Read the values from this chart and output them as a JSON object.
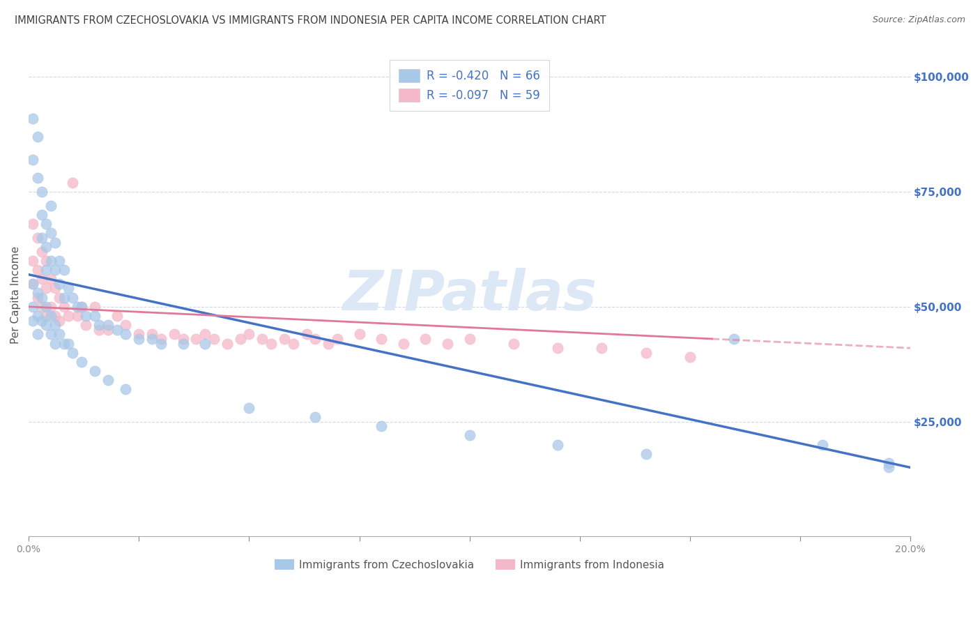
{
  "title": "IMMIGRANTS FROM CZECHOSLOVAKIA VS IMMIGRANTS FROM INDONESIA PER CAPITA INCOME CORRELATION CHART",
  "source": "Source: ZipAtlas.com",
  "ylabel": "Per Capita Income",
  "y_ticks": [
    0,
    25000,
    50000,
    75000,
    100000
  ],
  "x_min": 0.0,
  "x_max": 0.2,
  "y_min": 0,
  "y_max": 105000,
  "legend_r1": "R = -0.420",
  "legend_n1": "N = 66",
  "legend_r2": "R = -0.097",
  "legend_n2": "N = 59",
  "color_blue": "#a8c8e8",
  "color_pink": "#f4b8c8",
  "color_blue_line": "#4472c4",
  "color_pink_line": "#e07898",
  "color_axis_label": "#4472c4",
  "color_title": "#404040",
  "watermark": "ZIPatlas",
  "watermark_color": "#dce8f5",
  "grid_color": "#d0d8e8",
  "scatter_czech_x": [
    0.001,
    0.001,
    0.002,
    0.002,
    0.003,
    0.003,
    0.003,
    0.004,
    0.004,
    0.004,
    0.005,
    0.005,
    0.005,
    0.006,
    0.006,
    0.007,
    0.007,
    0.008,
    0.008,
    0.009,
    0.01,
    0.011,
    0.012,
    0.013,
    0.015,
    0.016,
    0.018,
    0.02,
    0.022,
    0.025,
    0.028,
    0.03,
    0.035,
    0.04,
    0.001,
    0.001,
    0.001,
    0.002,
    0.002,
    0.002,
    0.003,
    0.003,
    0.004,
    0.004,
    0.005,
    0.005,
    0.006,
    0.006,
    0.007,
    0.008,
    0.009,
    0.01,
    0.012,
    0.015,
    0.018,
    0.022,
    0.05,
    0.065,
    0.08,
    0.1,
    0.12,
    0.14,
    0.16,
    0.18,
    0.195,
    0.195
  ],
  "scatter_czech_y": [
    91000,
    82000,
    87000,
    78000,
    75000,
    70000,
    65000,
    68000,
    63000,
    58000,
    72000,
    66000,
    60000,
    64000,
    58000,
    60000,
    55000,
    58000,
    52000,
    54000,
    52000,
    50000,
    50000,
    48000,
    48000,
    46000,
    46000,
    45000,
    44000,
    43000,
    43000,
    42000,
    42000,
    42000,
    55000,
    50000,
    47000,
    53000,
    48000,
    44000,
    52000,
    47000,
    50000,
    46000,
    48000,
    44000,
    46000,
    42000,
    44000,
    42000,
    42000,
    40000,
    38000,
    36000,
    34000,
    32000,
    28000,
    26000,
    24000,
    22000,
    20000,
    18000,
    43000,
    20000,
    16000,
    15000
  ],
  "scatter_indo_x": [
    0.001,
    0.001,
    0.001,
    0.002,
    0.002,
    0.002,
    0.003,
    0.003,
    0.003,
    0.004,
    0.004,
    0.004,
    0.005,
    0.005,
    0.006,
    0.006,
    0.007,
    0.007,
    0.008,
    0.009,
    0.01,
    0.011,
    0.012,
    0.013,
    0.015,
    0.016,
    0.018,
    0.02,
    0.022,
    0.025,
    0.028,
    0.03,
    0.033,
    0.035,
    0.038,
    0.04,
    0.042,
    0.045,
    0.048,
    0.05,
    0.053,
    0.055,
    0.058,
    0.06,
    0.063,
    0.065,
    0.068,
    0.07,
    0.075,
    0.08,
    0.085,
    0.09,
    0.095,
    0.1,
    0.11,
    0.12,
    0.13,
    0.14,
    0.15
  ],
  "scatter_indo_y": [
    68000,
    60000,
    55000,
    65000,
    58000,
    52000,
    62000,
    56000,
    50000,
    60000,
    54000,
    48000,
    56000,
    50000,
    54000,
    48000,
    52000,
    47000,
    50000,
    48000,
    77000,
    48000,
    50000,
    46000,
    50000,
    45000,
    45000,
    48000,
    46000,
    44000,
    44000,
    43000,
    44000,
    43000,
    43000,
    44000,
    43000,
    42000,
    43000,
    44000,
    43000,
    42000,
    43000,
    42000,
    44000,
    43000,
    42000,
    43000,
    44000,
    43000,
    42000,
    43000,
    42000,
    43000,
    42000,
    41000,
    41000,
    40000,
    39000
  ],
  "trend_czech_x0": 0.0,
  "trend_czech_x1": 0.2,
  "trend_czech_y0": 57000,
  "trend_czech_y1": 15000,
  "trend_indo_x0": 0.0,
  "trend_indo_x1": 0.155,
  "trend_indo_y0": 50000,
  "trend_indo_y1": 43000,
  "trend_indo_dash_x0": 0.155,
  "trend_indo_dash_x1": 0.2,
  "trend_indo_dash_y0": 43000,
  "trend_indo_dash_y1": 41000,
  "legend_label1": "Immigrants from Czechoslovakia",
  "legend_label2": "Immigrants from Indonesia"
}
